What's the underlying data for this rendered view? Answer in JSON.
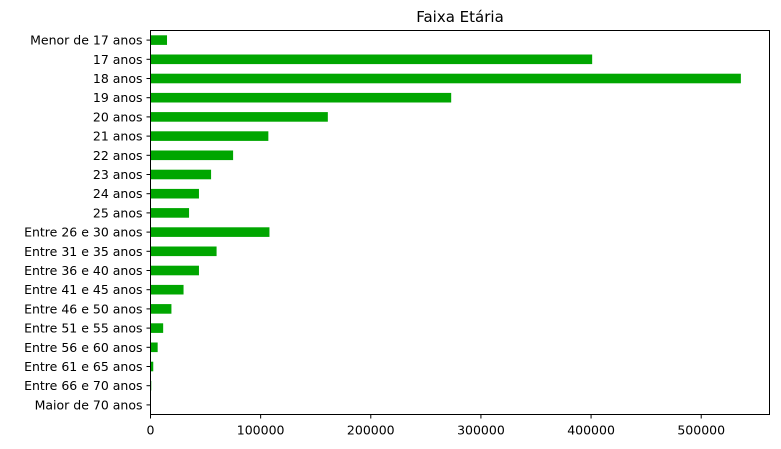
{
  "chart_data": {
    "type": "bar",
    "orientation": "horizontal",
    "title": "Faixa Etária",
    "xlabel": "",
    "ylabel": "",
    "categories": [
      "Menor de 17 anos",
      "17 anos",
      "18 anos",
      "19 anos",
      "20 anos",
      "21 anos",
      "22 anos",
      "23 anos",
      "24 anos",
      "25 anos",
      "Entre 26 e 30 anos",
      "Entre 31 e 35 anos",
      "Entre 36 e 40 anos",
      "Entre 41 e 45 anos",
      "Entre 46 e 50 anos",
      "Entre 51 e 55 anos",
      "Entre 56 e 60 anos",
      "Entre 61 e 65 anos",
      "Entre 66 e 70 anos",
      "Maior de 70 anos"
    ],
    "values": [
      15000,
      401000,
      536000,
      273000,
      161000,
      107000,
      75000,
      55000,
      44000,
      35000,
      108000,
      60000,
      44000,
      30000,
      19000,
      11500,
      6500,
      2500,
      700,
      300
    ],
    "xlim": [
      0,
      562000
    ],
    "xticks": [
      0,
      100000,
      200000,
      300000,
      400000,
      500000
    ],
    "xtick_labels": [
      "0",
      "100000",
      "200000",
      "300000",
      "400000",
      "500000"
    ],
    "bar_color": "#00a600",
    "grid": false,
    "legend": "none"
  }
}
